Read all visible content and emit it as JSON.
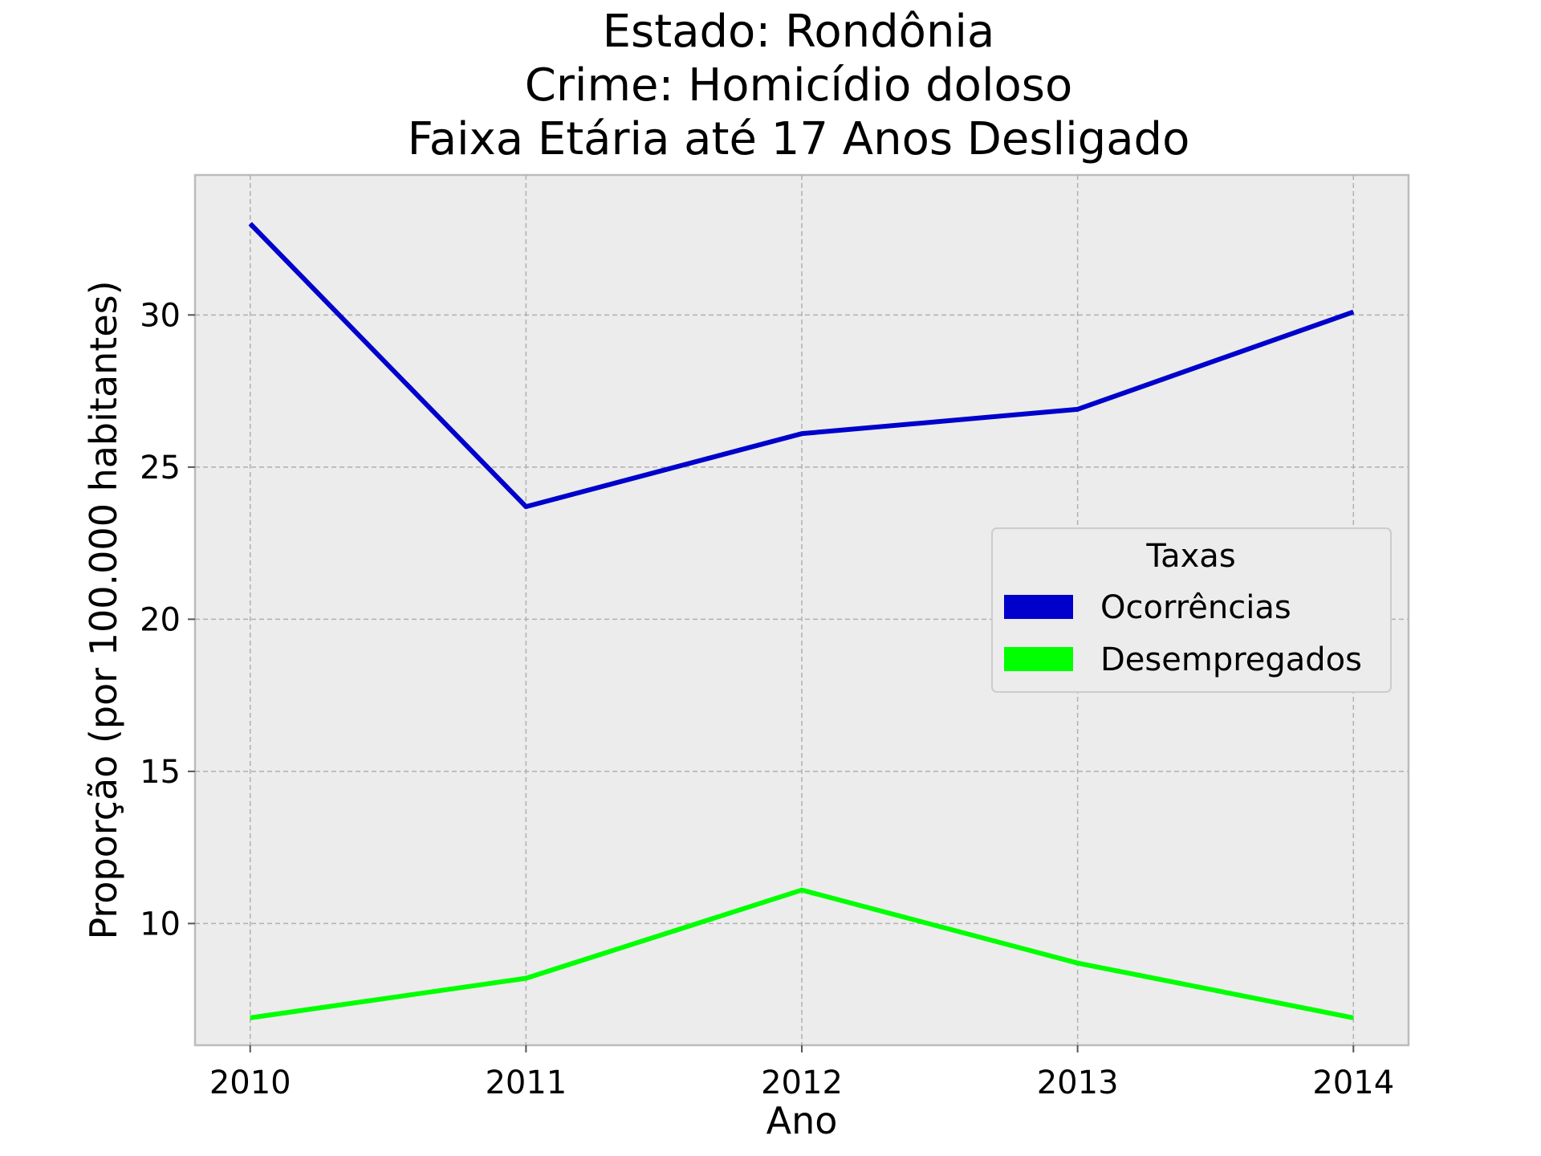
{
  "chart_data": {
    "type": "line",
    "title_lines": [
      "Estado: Rondônia",
      "Crime: Homicídio doloso",
      "Faixa Etária até 17 Anos   Desligado"
    ],
    "xlabel": "Ano",
    "ylabel": "Proporção (por 100.000 habitantes)",
    "x": [
      2010,
      2011,
      2012,
      2013,
      2014
    ],
    "x_tick_labels": [
      "2010",
      "2011",
      "2012",
      "2013",
      "2014"
    ],
    "y_ticks": [
      10,
      15,
      20,
      25,
      30
    ],
    "y_tick_labels": [
      "10",
      "15",
      "20",
      "25",
      "30"
    ],
    "xlim": [
      2009.8,
      2014.2
    ],
    "ylim": [
      6.0,
      34.6
    ],
    "grid": true,
    "legend": {
      "title": "Taxas",
      "placement": "center-right"
    },
    "series": [
      {
        "name": "Ocorrências",
        "color": "#0000cc",
        "values": [
          33.0,
          23.7,
          26.1,
          26.9,
          30.1
        ]
      },
      {
        "name": "Desempregados",
        "color": "#00ff00",
        "values": [
          6.9,
          8.2,
          11.1,
          8.7,
          6.9
        ]
      }
    ],
    "colors": {
      "background": "#ececec",
      "grid": "#b0b0b0",
      "frame": "#bcbcbc"
    }
  }
}
